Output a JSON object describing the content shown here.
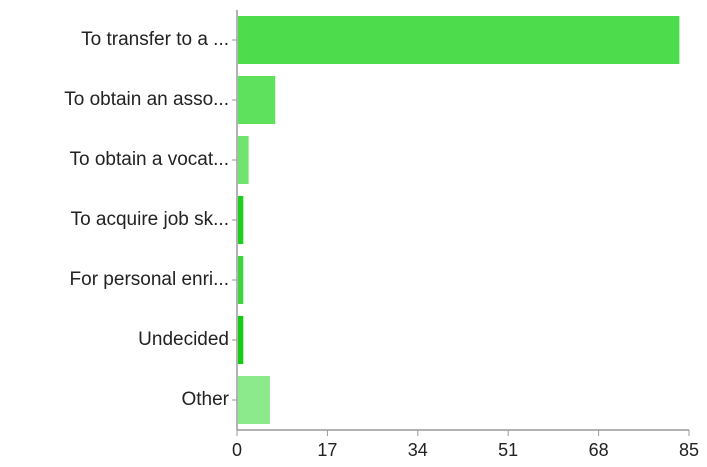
{
  "chart_data": {
    "type": "bar",
    "orientation": "horizontal",
    "title": "",
    "xlabel": "",
    "ylabel": "",
    "categories": [
      "To transfer to a ...",
      "To obtain an asso...",
      "To obtain a vocat...",
      "To acquire job sk...",
      "For personal enri...",
      "Undecided",
      "Other"
    ],
    "values": [
      83,
      7,
      2,
      1,
      1,
      1,
      6
    ],
    "xlim": [
      0,
      85
    ],
    "xticks": [
      "0",
      "17",
      "34",
      "51",
      "68",
      "85"
    ],
    "grid": false,
    "legend": "none",
    "colors": [
      "#4cdc4c",
      "#5ee25e",
      "#71e371",
      "#1fce1f",
      "#3fd43f",
      "#14cc14",
      "#8cea8c"
    ],
    "axis_color": "#9a9a9a"
  }
}
